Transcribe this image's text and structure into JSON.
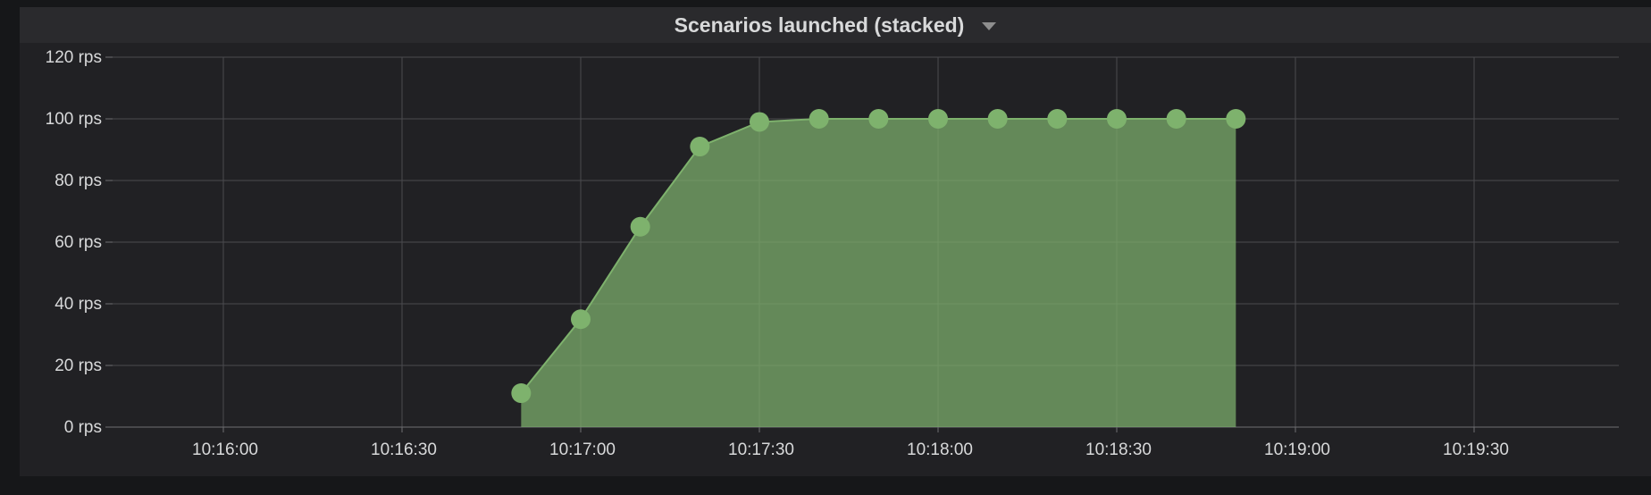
{
  "panel": {
    "title": "Scenarios launched (stacked)",
    "menu_icon": "caret-down-icon"
  },
  "chart_data": {
    "type": "area",
    "title": "Scenarios launched (stacked)",
    "xlabel": "",
    "ylabel": "",
    "y_unit": "rps",
    "x_ticks": [
      "10:16:00",
      "10:16:30",
      "10:17:00",
      "10:17:30",
      "10:18:00",
      "10:18:30",
      "10:19:00",
      "10:19:30"
    ],
    "y_ticks": [
      "0 rps",
      "20 rps",
      "40 rps",
      "60 rps",
      "80 rps",
      "100 rps",
      "120 rps"
    ],
    "ylim": [
      0,
      120
    ],
    "grid": true,
    "series": [
      {
        "color": "#7eb26d",
        "x": [
          "10:16:50",
          "10:17:00",
          "10:17:10",
          "10:17:20",
          "10:17:30",
          "10:17:40",
          "10:17:50",
          "10:18:00",
          "10:18:10",
          "10:18:20",
          "10:18:30",
          "10:18:40",
          "10:18:50"
        ],
        "values": [
          11,
          35,
          65,
          91,
          99,
          100,
          100,
          100,
          100,
          100,
          100,
          100,
          100
        ]
      }
    ]
  }
}
